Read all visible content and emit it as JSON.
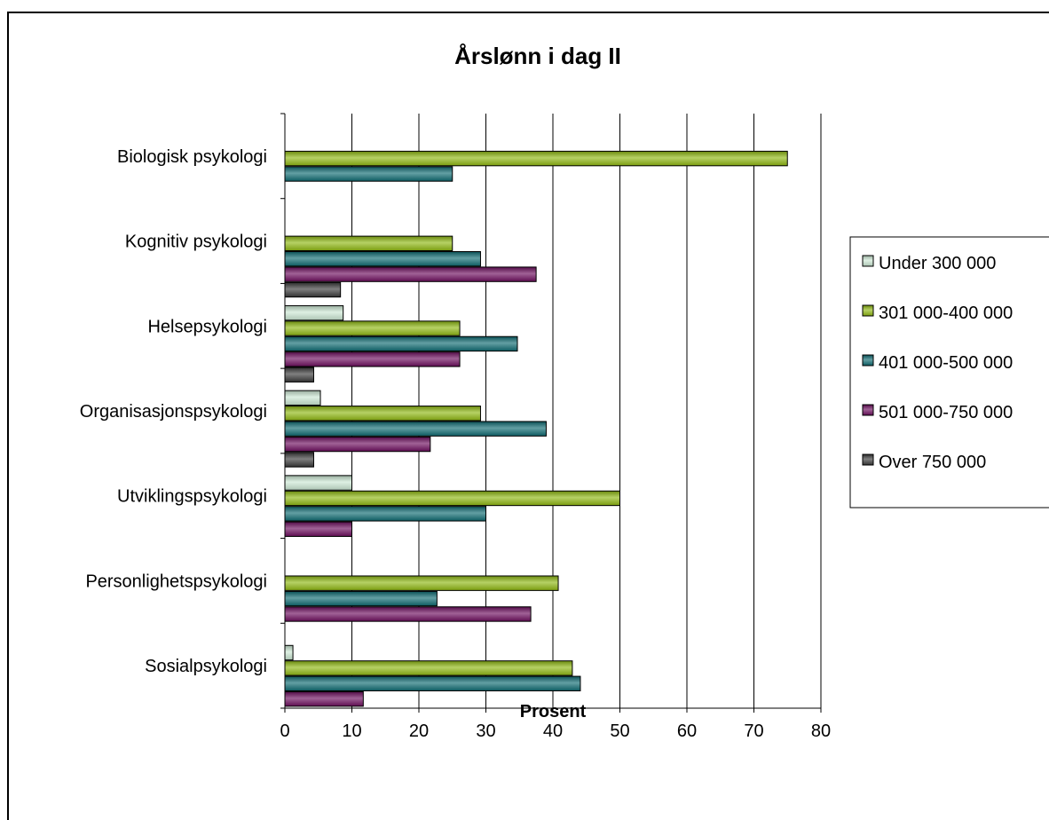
{
  "chart_data": {
    "type": "bar",
    "orientation": "horizontal",
    "title": "Årslønn i dag II",
    "xlabel": "Prosent",
    "ylabel": "",
    "xlim": [
      0,
      80
    ],
    "xticks": [
      "0",
      "10",
      "20",
      "30",
      "40",
      "50",
      "60",
      "70",
      "80"
    ],
    "grid": true,
    "legend_position": "right",
    "categories": [
      "Biologisk psykologi",
      "Kognitiv psykologi",
      "Helsepsykologi",
      "Organisasjonspsykologi",
      "Utviklingspsykologi",
      "Personlighetspsykologi",
      "Sosialpsykologi"
    ],
    "series": [
      {
        "name": "Under 300 000",
        "color": "#cce8d4",
        "values": [
          0,
          0,
          8.7,
          5.3,
          10,
          0,
          1.2
        ]
      },
      {
        "name": "301 000-400 000",
        "color": "#8fb812",
        "values": [
          75,
          25,
          26.1,
          29.2,
          50,
          40.8,
          42.9
        ]
      },
      {
        "name": "401 000-500 000",
        "color": "#0f6b72",
        "values": [
          25,
          29.2,
          34.7,
          39,
          30,
          22.7,
          44.1
        ]
      },
      {
        "name": "501 000-750 000",
        "color": "#6d0e5e",
        "values": [
          0,
          37.5,
          26.1,
          21.7,
          10,
          36.7,
          11.7
        ]
      },
      {
        "name": "Over 750 000",
        "color": "#3b3b3b",
        "values": [
          0,
          8.3,
          4.3,
          4.3,
          0,
          0,
          0
        ]
      }
    ]
  }
}
